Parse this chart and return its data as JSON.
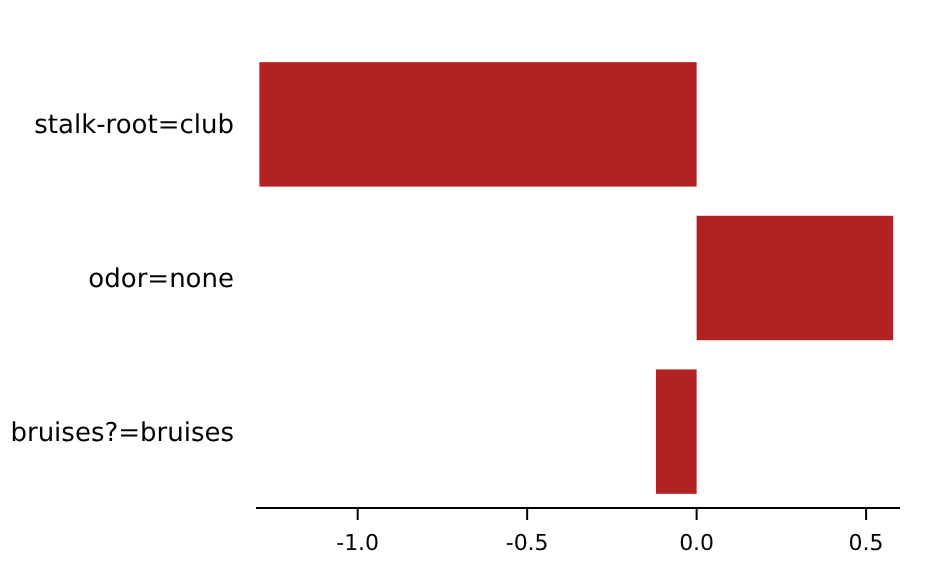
{
  "chart_data": {
    "type": "bar",
    "orientation": "horizontal",
    "categories": [
      "stalk-root=club",
      "odor=none",
      "bruises?=bruises"
    ],
    "values": [
      -1.29,
      0.58,
      -0.12
    ],
    "color": "#b22222",
    "xlim": [
      -1.3,
      0.6
    ],
    "xticks": [
      {
        "value": -1,
        "label": "-1.0"
      },
      {
        "value": -0.5,
        "label": "-0.5"
      },
      {
        "value": 0,
        "label": "0.0"
      },
      {
        "value": 0.5,
        "label": "0.5"
      }
    ],
    "grid": false
  }
}
